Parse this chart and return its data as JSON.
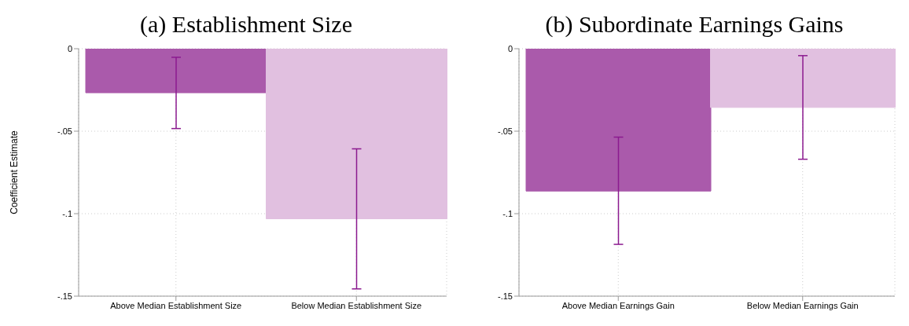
{
  "chart_data": [
    {
      "type": "bar",
      "title": "(a) Establishment Size",
      "ylabel": "Coefficient Estimate",
      "categories": [
        "Above Median Establishment Size",
        "Below Median Establishment Size"
      ],
      "values": [
        -0.0267,
        -0.1031
      ],
      "colors": [
        "#aa5aab",
        "#e1c0e0"
      ],
      "errors": [
        [
          -0.0484,
          -0.0052
        ],
        [
          -0.1456,
          -0.0607
        ]
      ],
      "ylim": [
        -0.15,
        0
      ],
      "yticks": [
        {
          "value": -0.15,
          "label": "-.15"
        },
        {
          "value": -0.1,
          "label": "-.1"
        },
        {
          "value": -0.05,
          "label": "-.05"
        },
        0
      ],
      "grid": true
    },
    {
      "type": "bar",
      "title": "(b) Subordinate Earnings Gains",
      "categories": [
        "Above Median Earnings Gain",
        "Below Median Earnings Gain"
      ],
      "values": [
        -0.0863,
        -0.0356
      ],
      "colors": [
        "#aa5aab",
        "#e1c0e0"
      ],
      "errors": [
        [
          -0.1186,
          -0.0536
        ],
        [
          -0.067,
          -0.0042
        ]
      ],
      "ylim": [
        -0.15,
        0
      ],
      "yticks": [
        {
          "value": -0.15,
          "label": "-.15"
        },
        {
          "value": -0.1,
          "label": "-.1"
        },
        {
          "value": -0.05,
          "label": "-.05"
        },
        0
      ],
      "grid": true
    }
  ]
}
